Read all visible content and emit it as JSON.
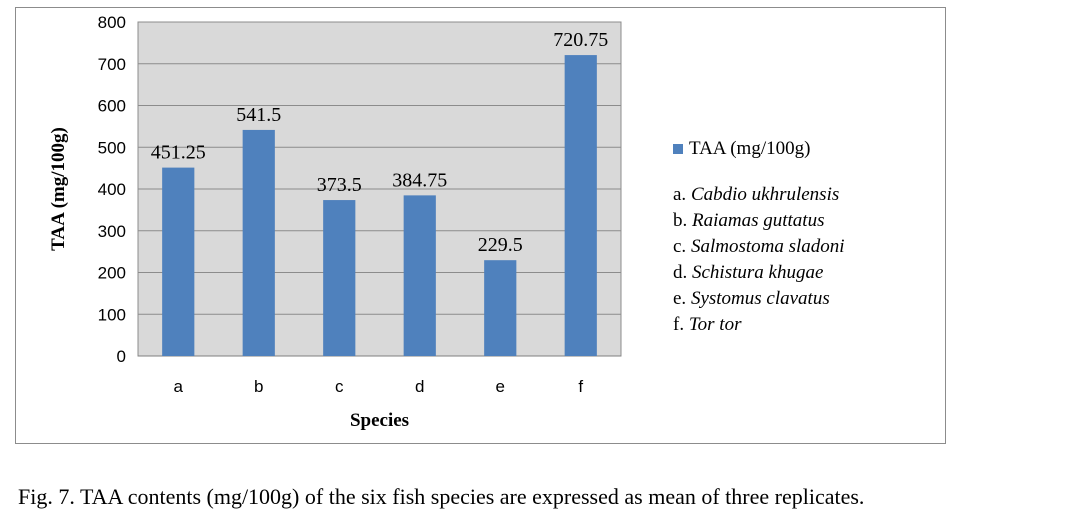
{
  "chart_data": {
    "type": "bar",
    "categories": [
      "a",
      "b",
      "c",
      "d",
      "e",
      "f"
    ],
    "values": [
      451.25,
      541.5,
      373.5,
      384.75,
      229.5,
      720.75
    ],
    "data_labels": [
      "451.25",
      "541.5",
      "373.5",
      "384.75",
      "229.5",
      "720.75"
    ],
    "xlabel": "Species",
    "ylabel": "TAA (mg/100g)",
    "ylim": [
      0,
      800
    ],
    "yticks": [
      0,
      100,
      200,
      300,
      400,
      500,
      600,
      700,
      800
    ],
    "series_name": "TAA (mg/100g)",
    "bar_color": "#4f81bd",
    "plot_background": "#d9d9d9",
    "grid": true,
    "legend_position": "right"
  },
  "legend": {
    "series_label": "TAA (mg/100g)",
    "species": [
      {
        "key": "a.",
        "name": "Cabdio ukhrulensis"
      },
      {
        "key": "b.",
        "name": "Raiamas guttatus"
      },
      {
        "key": "c.",
        "name": "Salmostoma sladoni"
      },
      {
        "key": "d.",
        "name": "Schistura khugae"
      },
      {
        "key": "e.",
        "name": "Systomus clavatus"
      },
      {
        "key": "f.",
        "name": "Tor tor"
      }
    ]
  },
  "caption": "Fig. 7. TAA contents (mg/100g) of the six fish species are expressed as mean of three replicates."
}
